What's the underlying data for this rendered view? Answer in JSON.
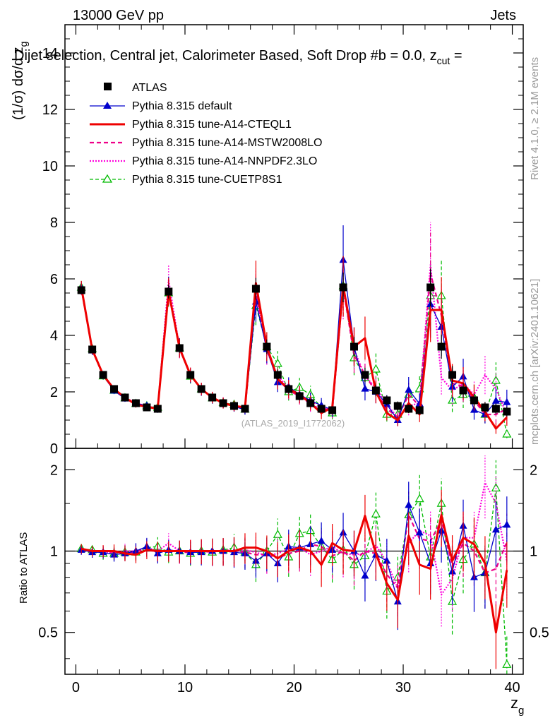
{
  "header": {
    "left": "13000 GeV pp",
    "right": "Jets",
    "subtitle": "Dijet selection, Central jet, Calorimeter Based, Soft Drop #b = 0.0, z",
    "subtitle_sub": "cut",
    "subtitle_tail": " ="
  },
  "side_labels": {
    "rivet": "Rivet 4.1.0, ≥ 2.1M events",
    "mcplots": "mcplots.cern.ch [arXiv:2401.10621]"
  },
  "watermark": "(ATLAS_2019_I1772062)",
  "axes": {
    "ylabel_main": "(1/σ) dσ/d z",
    "ylabel_main_sub": "g",
    "ylabel_ratio": "Ratio to ATLAS",
    "xlabel": "z",
    "xlabel_sub": "g"
  },
  "colors": {
    "atlas": "#000000",
    "default": "#0000cc",
    "cteql1": "#ee0000",
    "mstw": "#ee0088",
    "nnpdf": "#ff00dd",
    "cuetp": "#00bb00"
  },
  "chart_data": {
    "type": "line",
    "x": [
      0.5,
      1.5,
      2.5,
      3.5,
      4.5,
      5.5,
      6.5,
      7.5,
      8.5,
      9.5,
      10.5,
      11.5,
      12.5,
      13.5,
      14.5,
      15.5,
      16.5,
      17.5,
      18.5,
      19.5,
      20.5,
      21.5,
      22.5,
      23.5,
      24.5,
      25.5,
      26.5,
      27.5,
      28.5,
      29.5,
      30.5,
      31.5,
      32.5,
      33.5,
      34.5,
      35.5,
      36.5,
      37.5,
      38.5,
      39.5
    ],
    "xlim": [
      -1,
      41
    ],
    "ylim": [
      0,
      15
    ],
    "ratio_ylim": [
      0.35,
      2.4
    ],
    "xticks": [
      0,
      10,
      20,
      30,
      40
    ],
    "yticks": [
      0,
      2,
      4,
      6,
      8,
      10,
      12,
      14
    ],
    "ratio_yticks": [
      0.5,
      1,
      2
    ],
    "series": [
      {
        "name": "ATLAS",
        "key": "atlas",
        "style": "marker-square",
        "values": [
          5.6,
          3.5,
          2.6,
          2.1,
          1.8,
          1.6,
          1.45,
          1.4,
          5.55,
          3.55,
          2.6,
          2.1,
          1.8,
          1.6,
          1.5,
          1.4,
          5.65,
          3.6,
          2.6,
          2.1,
          1.85,
          1.6,
          1.4,
          1.35,
          5.7,
          3.6,
          2.6,
          2.05,
          1.7,
          1.5,
          1.4,
          1.35,
          5.7,
          3.6,
          2.6,
          2.05,
          1.7,
          1.45,
          1.4,
          1.3
        ],
        "ratio": [
          1,
          1,
          1,
          1,
          1,
          1,
          1,
          1,
          1,
          1,
          1,
          1,
          1,
          1,
          1,
          1,
          1,
          1,
          1,
          1,
          1,
          1,
          1,
          1,
          1,
          1,
          1,
          1,
          1,
          1,
          1,
          1,
          1,
          1,
          1,
          1,
          1,
          1,
          1,
          1
        ]
      },
      {
        "name": "Pythia 8.315 default",
        "key": "default",
        "style": "solid-triangle",
        "values": [
          5.68,
          3.46,
          2.58,
          2.04,
          1.76,
          1.6,
          1.51,
          1.37,
          5.59,
          3.57,
          2.57,
          2.08,
          1.79,
          1.6,
          1.48,
          1.37,
          5.19,
          3.51,
          2.34,
          2.18,
          1.91,
          1.69,
          1.52,
          1.36,
          6.67,
          3.6,
          2.11,
          2.0,
          1.56,
          1.0,
          2.07,
          1.58,
          5.1,
          4.3,
          2.18,
          2.54,
          1.36,
          1.2,
          1.68,
          1.63
        ],
        "ratio": [
          1.01,
          0.99,
          0.99,
          0.97,
          0.98,
          1.0,
          1.04,
          0.98,
          1.01,
          1.0,
          0.99,
          0.99,
          1.0,
          1.0,
          0.99,
          0.98,
          0.92,
          0.98,
          0.9,
          1.04,
          1.03,
          1.06,
          1.09,
          1.01,
          1.17,
          1.0,
          0.81,
          0.97,
          0.92,
          0.65,
          1.48,
          1.17,
          0.9,
          1.19,
          0.84,
          1.24,
          0.8,
          0.83,
          1.2,
          1.25
        ]
      },
      {
        "name": "Pythia 8.315 tune-A14-CTEQL1",
        "key": "cteql1",
        "style": "thick-solid",
        "values": [
          5.7,
          3.5,
          2.6,
          2.1,
          1.8,
          1.55,
          1.47,
          1.4,
          5.55,
          3.55,
          2.6,
          2.1,
          1.8,
          1.6,
          1.5,
          1.45,
          5.85,
          3.6,
          2.45,
          2.1,
          1.9,
          1.6,
          1.25,
          1.45,
          5.75,
          3.6,
          3.9,
          2.0,
          1.25,
          1.0,
          1.6,
          1.2,
          4.9,
          4.9,
          2.4,
          2.3,
          1.8,
          1.3,
          0.7,
          1.1
        ],
        "ratio": [
          1.02,
          1.0,
          1.0,
          1.0,
          0.98,
          0.97,
          1.01,
          1.0,
          1.0,
          1.0,
          1.0,
          1.0,
          1.0,
          1.0,
          1.0,
          1.03,
          1.03,
          1.0,
          0.94,
          1.0,
          1.03,
          1.0,
          0.89,
          1.07,
          1.01,
          1.0,
          1.35,
          0.98,
          0.76,
          0.66,
          1.14,
          0.89,
          0.86,
          1.36,
          0.92,
          1.12,
          1.06,
          0.9,
          0.5,
          0.85
        ]
      },
      {
        "name": "Pythia 8.315 tune-A14-MSTW2008LO",
        "key": "mstw",
        "style": "dashed",
        "values": [
          5.66,
          3.48,
          2.6,
          2.08,
          1.79,
          1.58,
          1.5,
          1.39,
          5.6,
          3.52,
          2.58,
          2.1,
          1.78,
          1.62,
          1.5,
          1.38,
          5.5,
          3.5,
          2.45,
          2.05,
          1.85,
          1.7,
          1.45,
          1.3,
          5.7,
          3.3,
          2.6,
          2.0,
          1.4,
          1.1,
          1.9,
          1.5,
          6.2,
          4.7,
          2.3,
          2.2,
          1.7,
          1.2,
          1.2,
          1.4
        ],
        "ratio": [
          1.01,
          0.99,
          1.0,
          0.99,
          0.99,
          0.99,
          1.03,
          0.99,
          1.01,
          0.99,
          0.99,
          1.0,
          0.99,
          1.01,
          1.0,
          0.99,
          0.97,
          0.97,
          0.94,
          0.98,
          1.0,
          1.06,
          1.04,
          0.96,
          1.0,
          0.92,
          1.0,
          0.98,
          0.82,
          0.73,
          1.36,
          1.11,
          1.09,
          1.3,
          0.88,
          1.07,
          1.0,
          0.83,
          0.86,
          1.08
        ]
      },
      {
        "name": "Pythia 8.315 tune-A14-NNPDF2.3LO",
        "key": "nnpdf",
        "style": "dotted",
        "values": [
          5.66,
          3.5,
          2.58,
          2.06,
          1.8,
          1.6,
          1.5,
          1.4,
          5.95,
          3.55,
          2.6,
          2.1,
          1.8,
          1.6,
          1.5,
          1.42,
          5.6,
          3.45,
          2.55,
          2.15,
          1.9,
          1.55,
          1.4,
          1.4,
          5.6,
          3.5,
          2.55,
          2.15,
          1.55,
          1.1,
          1.5,
          1.6,
          6.5,
          2.5,
          2.05,
          2.3,
          1.9,
          2.6,
          2.1,
          1.2
        ],
        "ratio": [
          1.01,
          1.0,
          0.99,
          0.98,
          1.0,
          1.0,
          1.03,
          1.0,
          1.07,
          1.0,
          1.0,
          1.0,
          1.0,
          1.0,
          1.0,
          1.01,
          0.99,
          0.96,
          0.98,
          1.02,
          1.03,
          0.97,
          1.0,
          1.04,
          0.98,
          0.97,
          0.98,
          1.05,
          0.91,
          0.73,
          1.07,
          1.19,
          1.14,
          0.69,
          0.79,
          1.12,
          1.12,
          1.79,
          1.5,
          0.92
        ]
      },
      {
        "name": "Pythia 8.315 tune-CUETP8S1",
        "key": "cuetp",
        "style": "dashed-triangle",
        "values": [
          5.7,
          3.52,
          2.56,
          2.05,
          1.78,
          1.58,
          1.5,
          1.45,
          5.5,
          3.55,
          2.55,
          2.1,
          1.78,
          1.62,
          1.55,
          1.38,
          5.05,
          3.6,
          3.0,
          2.0,
          2.15,
          1.9,
          1.45,
          1.25,
          5.75,
          3.2,
          2.5,
          2.8,
          1.2,
          1.2,
          1.9,
          2.1,
          5.4,
          5.4,
          1.7,
          1.9,
          1.8,
          1.2,
          2.4,
          0.5
        ],
        "ratio": [
          1.02,
          1.01,
          0.98,
          0.98,
          0.99,
          0.99,
          1.03,
          1.04,
          0.99,
          1.0,
          0.98,
          1.0,
          0.99,
          1.01,
          1.03,
          0.99,
          0.89,
          1.0,
          1.15,
          0.95,
          1.16,
          1.19,
          1.04,
          0.93,
          1.01,
          0.89,
          0.96,
          1.37,
          0.71,
          0.8,
          1.36,
          1.56,
          0.95,
          1.5,
          0.65,
          0.93,
          1.06,
          0.83,
          1.71,
          0.38
        ]
      }
    ]
  }
}
